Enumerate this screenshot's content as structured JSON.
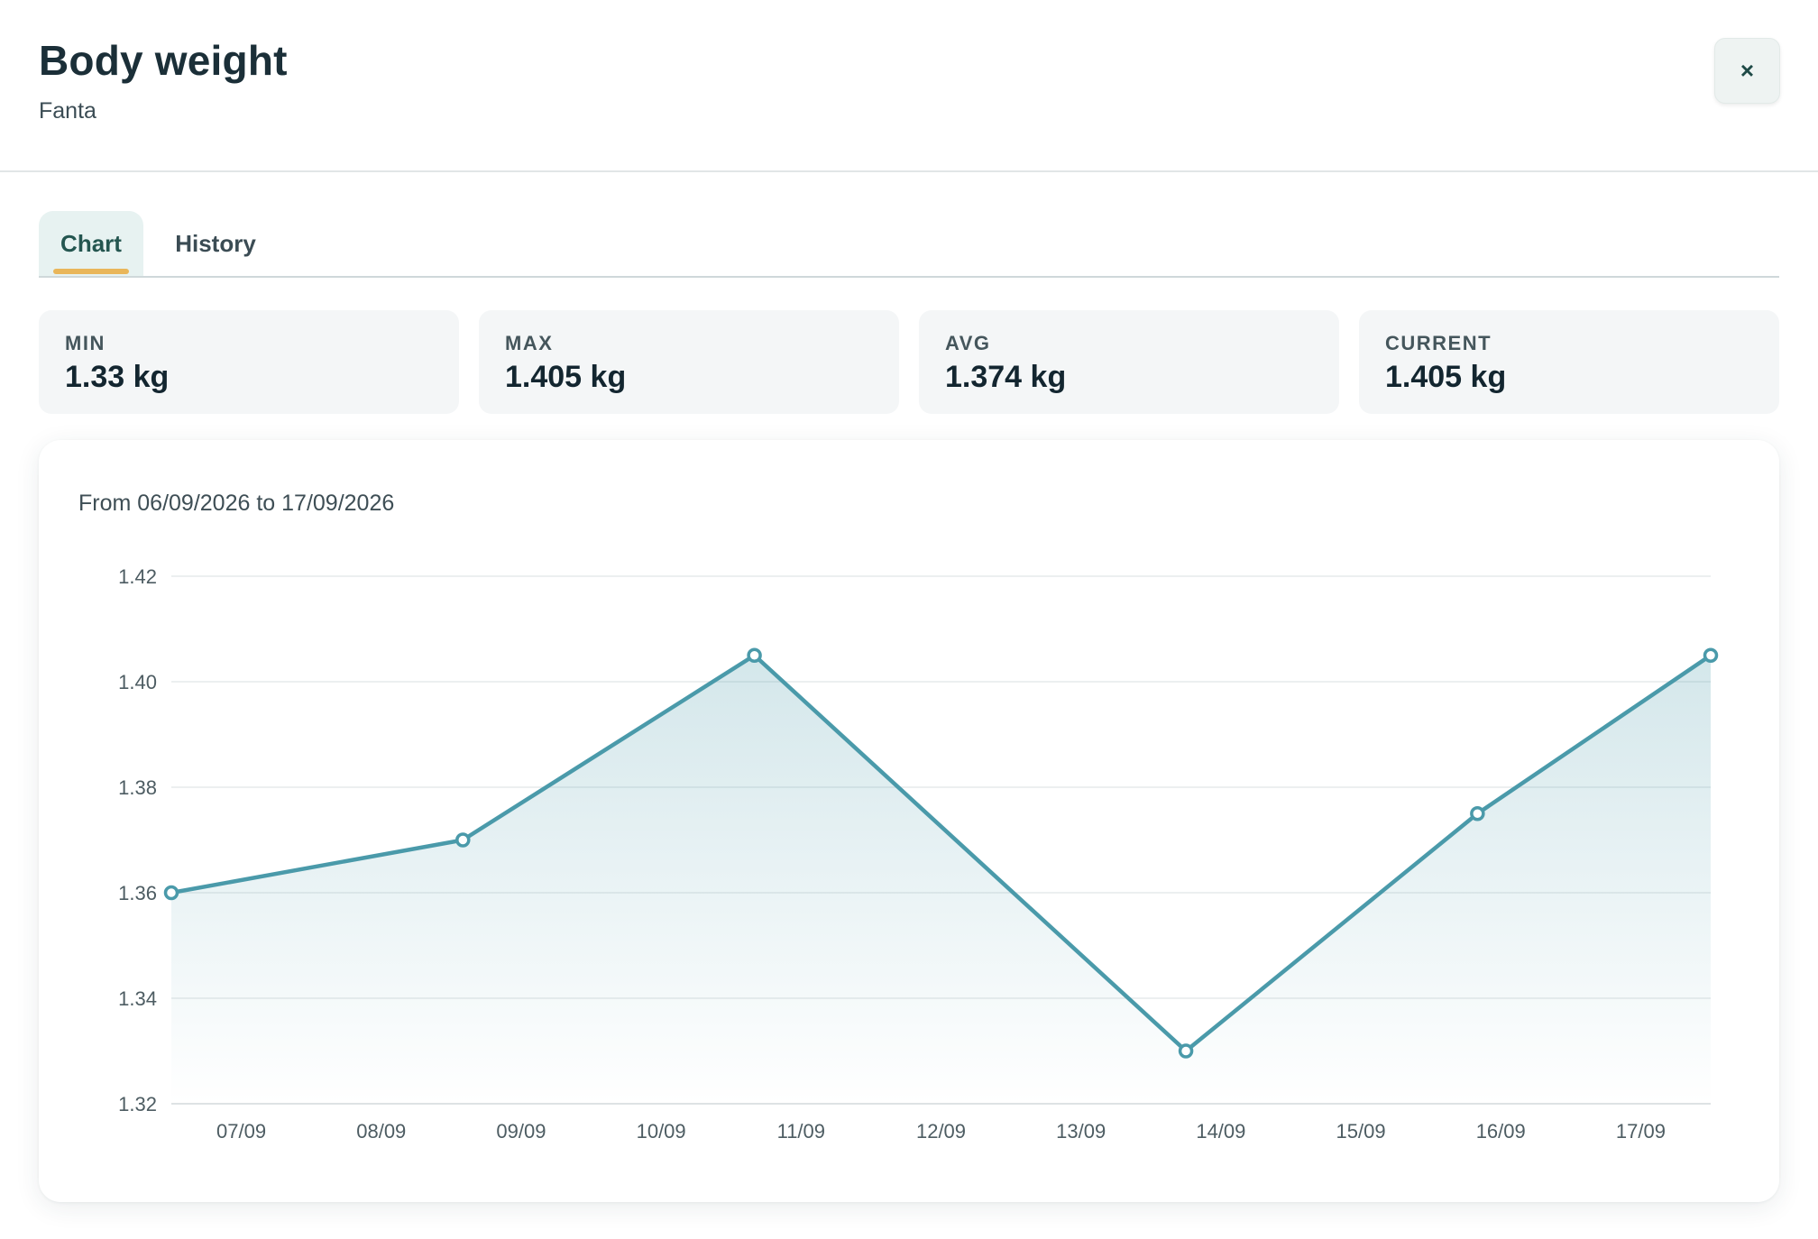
{
  "header": {
    "title": "Body weight",
    "subtitle": "Fanta",
    "close_label": "×"
  },
  "tabs": [
    {
      "label": "Chart",
      "active": true
    },
    {
      "label": "History",
      "active": false
    }
  ],
  "stats": [
    {
      "label": "MIN",
      "value": "1.33 kg"
    },
    {
      "label": "MAX",
      "value": "1.405 kg"
    },
    {
      "label": "AVG",
      "value": "1.374 kg"
    },
    {
      "label": "CURRENT",
      "value": "1.405 kg"
    }
  ],
  "chart": {
    "range_text": "From 06/09/2026 to 17/09/2026"
  },
  "colors": {
    "accent": "#4a9aaa",
    "tab_indicator": "#e9b65a"
  },
  "chart_data": {
    "type": "area",
    "title": "",
    "xlabel": "",
    "ylabel": "",
    "x": [
      "06/09/2026 12:00",
      "08/09/2026 14:00",
      "10/09/2026 16:00",
      "13/09/2026 18:00",
      "15/09/2026 20:00",
      "17/09/2026 12:00"
    ],
    "values": [
      1.36,
      1.37,
      1.405,
      1.33,
      1.375,
      1.405
    ],
    "xlim": [
      "06/09/2026 12:00",
      "17/09/2026 12:00"
    ],
    "ylim": [
      1.32,
      1.42
    ],
    "yticks": [
      "1.32",
      "1.34",
      "1.36",
      "1.38",
      "1.40",
      "1.42"
    ],
    "xticks": [
      "07/09",
      "08/09",
      "09/09",
      "10/09",
      "11/09",
      "12/09",
      "13/09",
      "14/09",
      "15/09",
      "16/09",
      "17/09"
    ],
    "grid": true,
    "legend": "none"
  }
}
